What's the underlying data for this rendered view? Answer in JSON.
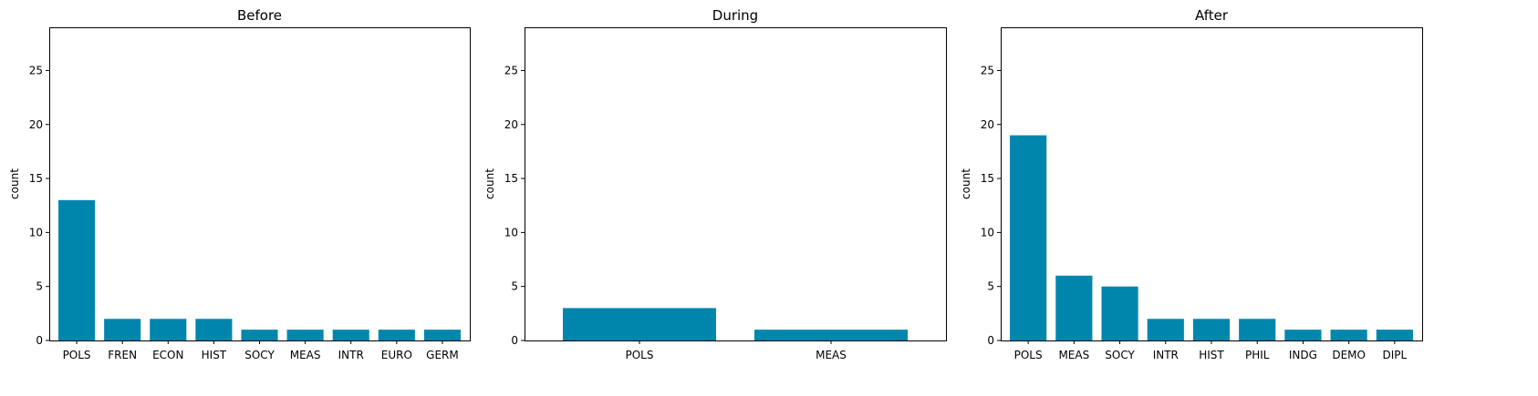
{
  "colors": {
    "bar": "#0086ad",
    "axis": "#000000",
    "background": "#ffffff"
  },
  "chart_data": [
    {
      "type": "bar",
      "title": "Before",
      "xlabel": "",
      "ylabel": "count",
      "ylim": [
        0,
        29
      ],
      "yticks": [
        0,
        5,
        10,
        15,
        20,
        25
      ],
      "categories": [
        "POLS",
        "FREN",
        "ECON",
        "HIST",
        "SOCY",
        "MEAS",
        "INTR",
        "EURO",
        "GERM"
      ],
      "values": [
        13,
        2,
        2,
        2,
        1,
        1,
        1,
        1,
        1
      ]
    },
    {
      "type": "bar",
      "title": "During",
      "xlabel": "",
      "ylabel": "count",
      "ylim": [
        0,
        29
      ],
      "yticks": [
        0,
        5,
        10,
        15,
        20,
        25
      ],
      "categories": [
        "POLS",
        "MEAS"
      ],
      "values": [
        3,
        1
      ]
    },
    {
      "type": "bar",
      "title": "After",
      "xlabel": "",
      "ylabel": "count",
      "ylim": [
        0,
        29
      ],
      "yticks": [
        0,
        5,
        10,
        15,
        20,
        25
      ],
      "categories": [
        "POLS",
        "MEAS",
        "SOCY",
        "INTR",
        "HIST",
        "PHIL",
        "INDG",
        "DEMO",
        "DIPL"
      ],
      "values": [
        19,
        6,
        5,
        2,
        2,
        2,
        1,
        1,
        1
      ]
    }
  ]
}
